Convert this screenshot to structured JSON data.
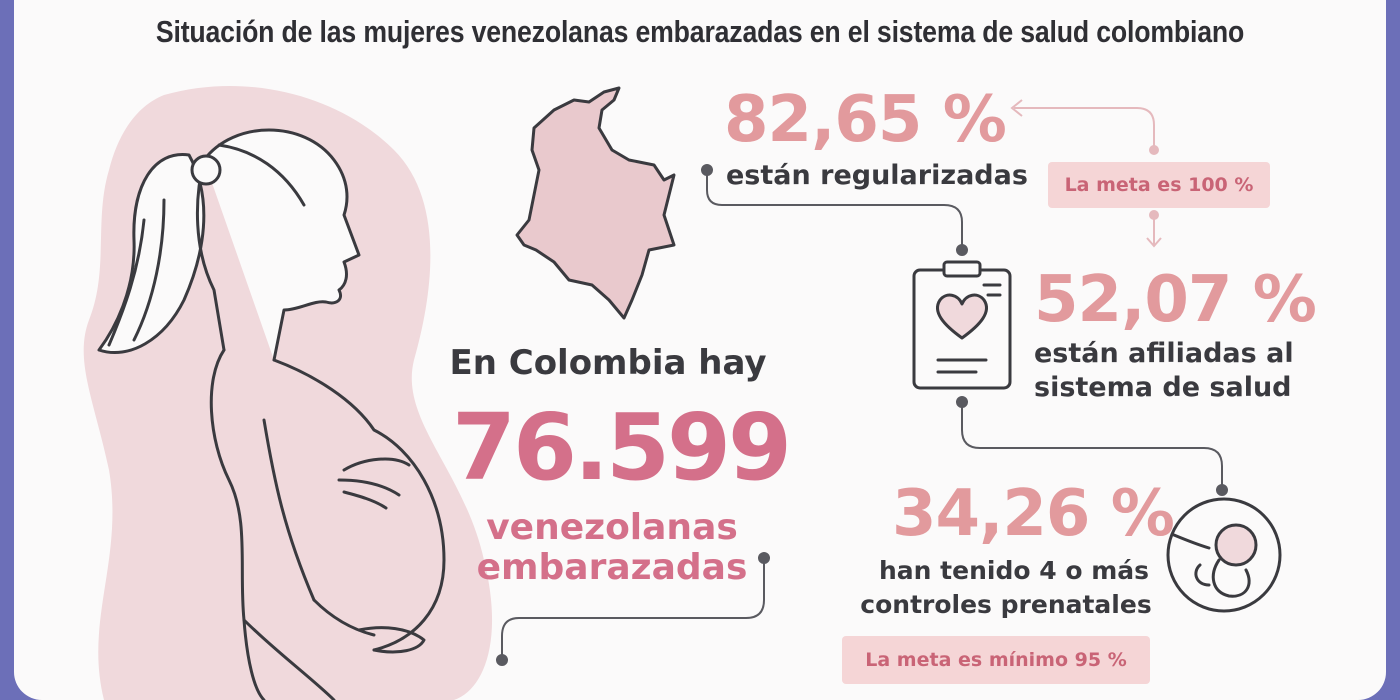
{
  "title": "Situación de las mujeres venezolanas embarazadas en el sistema de salud colombiano",
  "intro": "En Colombia hay",
  "total": {
    "number": "76.599",
    "line1": "venezolanas",
    "line2": "embarazadas"
  },
  "stats": [
    {
      "value": "82,65 %",
      "label": "están regularizadas"
    },
    {
      "value": "52,07 %",
      "label_line1": "están afiliadas al",
      "label_line2": "sistema de salud"
    },
    {
      "value": "34,26 %",
      "label_line1": "han tenido 4 o más",
      "label_line2": "controles prenatales"
    }
  ],
  "goals": [
    "La meta es 100 %",
    "La meta es mínimo 95 %"
  ],
  "colors": {
    "frame": "#6c6fb8",
    "pink_light": "#f0d9dc",
    "pink_number": "#e29a9d",
    "pink_big": "#d4708a",
    "text": "#3a3a3f"
  },
  "icons": [
    "pregnant-woman-illustration",
    "colombia-map-icon",
    "clipboard-heart-icon",
    "fetus-icon"
  ]
}
